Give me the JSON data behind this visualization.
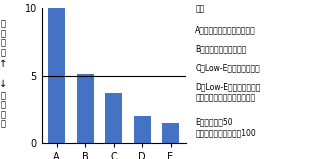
{
  "categories": [
    "A",
    "B",
    "C",
    "D",
    "E"
  ],
  "values": [
    10,
    5.1,
    3.7,
    2.0,
    1.5
  ],
  "bar_color": "#4472C4",
  "ylim": [
    0,
    10
  ],
  "yticks": [
    0,
    5,
    10
  ],
  "hline_y": 5,
  "ylabel_top": "断\n熱\n性\n小",
  "ylabel_bottom": "断\n熱\n性\n大",
  "arrow_label": "↑\n\n↓",
  "legend_title": "凡例",
  "legend_items": [
    "A：透明ガラス（シングル）",
    "B：透明ガラス（複層）",
    "C：Low-Eガラス（複層）",
    "D：Low-Eガラス（複層）\n　　＋プラスチックフィルム",
    "E：断熱材厚50\n　　＋コンクリート厚100"
  ],
  "legend_fontsize": 5.5,
  "tick_fontsize": 7,
  "bar_width": 0.6
}
